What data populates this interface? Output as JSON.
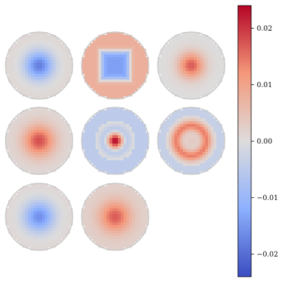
{
  "chart_data": {
    "type": "heatmap",
    "description_shape": "grid of circular spatial maps (3 rows, 3 columns, 8 panels) with shared diverging colorbar",
    "colormap": "coolwarm",
    "vmin": -0.024,
    "vmax": 0.024,
    "colorbar": {
      "ticks": [
        0.02,
        0.01,
        0.0,
        -0.01,
        -0.02
      ],
      "tick_labels": [
        "0.02",
        "0.01",
        "0.00",
        "−0.01",
        "−0.02"
      ]
    },
    "panels": [
      {
        "pattern": "blob",
        "center": -0.018,
        "edge": 0.001,
        "spread": 0.42
      },
      {
        "pattern": "square",
        "center": -0.014,
        "edge": 0.008,
        "spread": 0.4
      },
      {
        "pattern": "blob",
        "center": 0.017,
        "edge": 0.0,
        "spread": 0.38
      },
      {
        "pattern": "blob",
        "center": 0.018,
        "edge": 0.001,
        "spread": 0.45
      },
      {
        "pattern": "core",
        "center": 0.024,
        "edge": -0.006,
        "spread": 0.22
      },
      {
        "pattern": "ring",
        "center": 0.01,
        "edge": -0.004,
        "spread": 0.55
      },
      {
        "pattern": "blob",
        "center": -0.016,
        "edge": 0.001,
        "spread": 0.45
      },
      {
        "pattern": "blob",
        "center": 0.017,
        "edge": 0.002,
        "spread": 0.45
      }
    ]
  }
}
